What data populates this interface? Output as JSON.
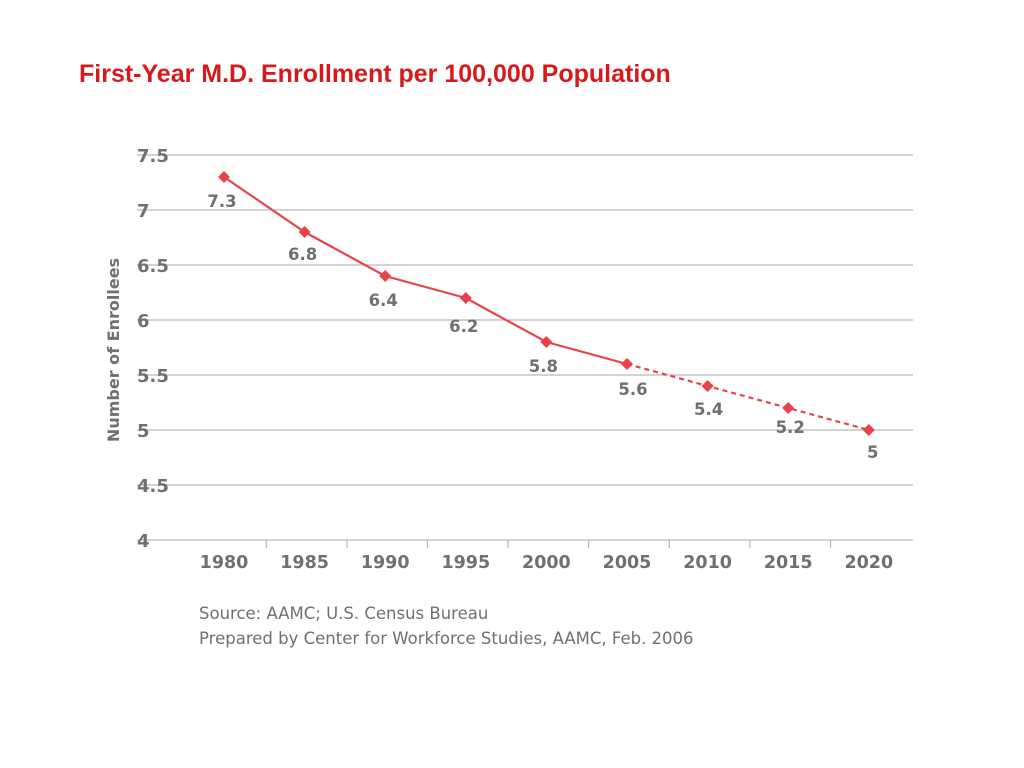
{
  "slide": {
    "title": "First-Year M.D. Enrollment per 100,000 Population"
  },
  "source": {
    "line1": "Source: AAMC; U.S. Census Bureau",
    "line2": "Prepared by Center for Workforce Studies, AAMC, Feb. 2006"
  },
  "colors": {
    "title": "#d7191c",
    "series": "#e8434a",
    "grid": "#b9b9b9",
    "axis_text": "#707070"
  },
  "chart_data": {
    "type": "line",
    "title": "",
    "xlabel": "",
    "ylabel": "Number of Enrollees",
    "ylim": [
      4,
      7.5
    ],
    "yticks": [
      "4",
      "4.5",
      "5",
      "5.5",
      "6",
      "6.5",
      "7",
      "7.5"
    ],
    "categories": [
      "1980",
      "1985",
      "1990",
      "1995",
      "2000",
      "2005",
      "2010",
      "2015",
      "2020"
    ],
    "grid": true,
    "legend": "none",
    "series": [
      {
        "values": [
          7.3,
          6.8,
          6.4,
          6.2,
          5.8,
          5.6,
          5.4,
          5.2,
          5.0
        ],
        "labels": [
          "7.3",
          "6.8",
          "6.4",
          "6.2",
          "5.8",
          "5.6",
          "5.4",
          "5.2",
          "5"
        ],
        "actual_through": "2005",
        "projected_from": "2005",
        "projected_style": "dashed"
      }
    ]
  }
}
